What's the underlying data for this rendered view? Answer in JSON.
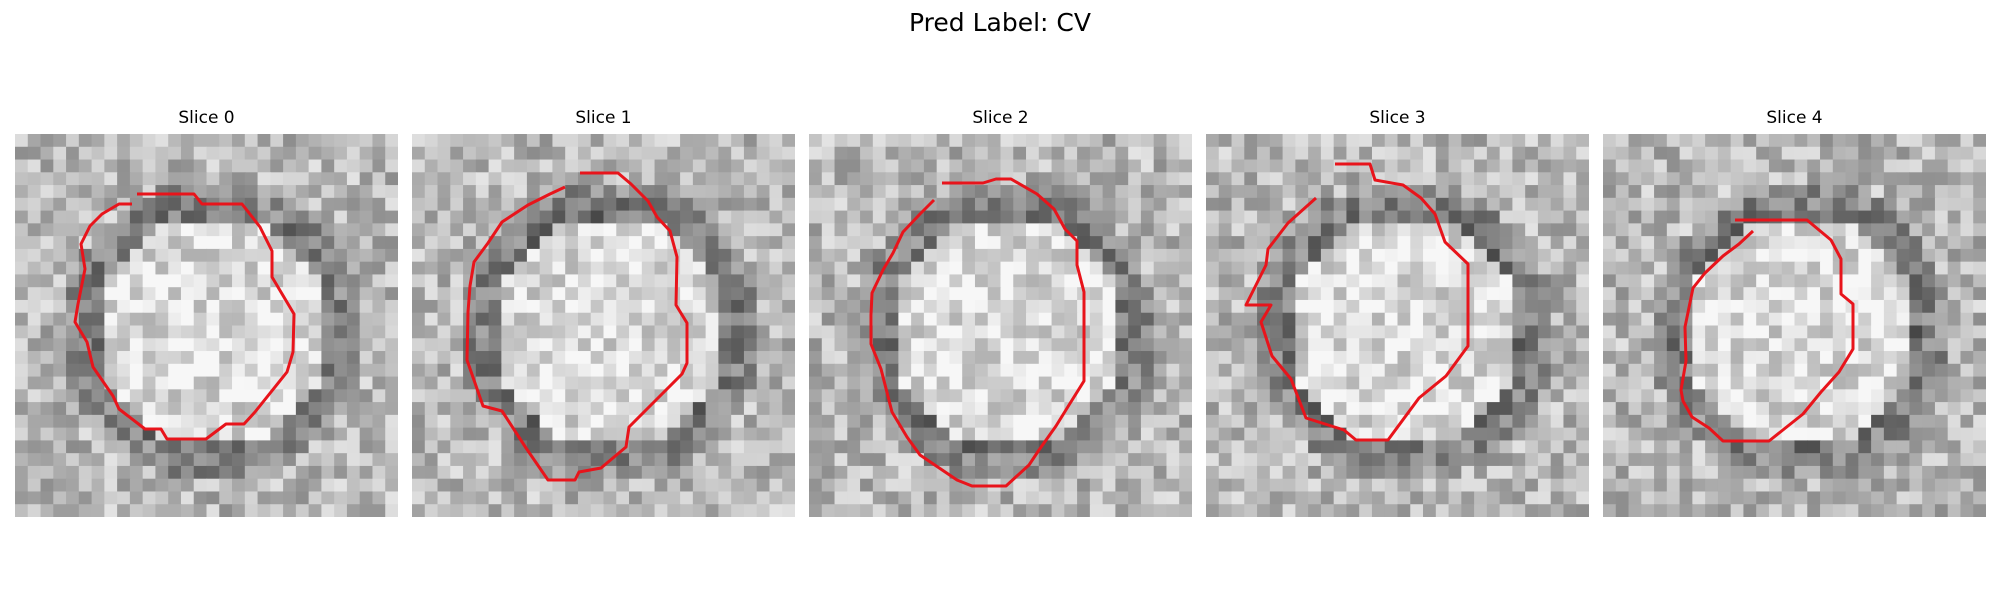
{
  "figure": {
    "title": "Pred Label: CV",
    "panels": [
      {
        "title": "Slice 0",
        "contour_color": "#e8141b",
        "seed": 11
      },
      {
        "title": "Slice 1",
        "contour_color": "#e8141b",
        "seed": 23
      },
      {
        "title": "Slice 2",
        "contour_color": "#e8141b",
        "seed": 37
      },
      {
        "title": "Slice 3",
        "contour_color": "#e8141b",
        "seed": 51
      },
      {
        "title": "Slice 4",
        "contour_color": "#e8141b",
        "seed": 67
      }
    ]
  }
}
